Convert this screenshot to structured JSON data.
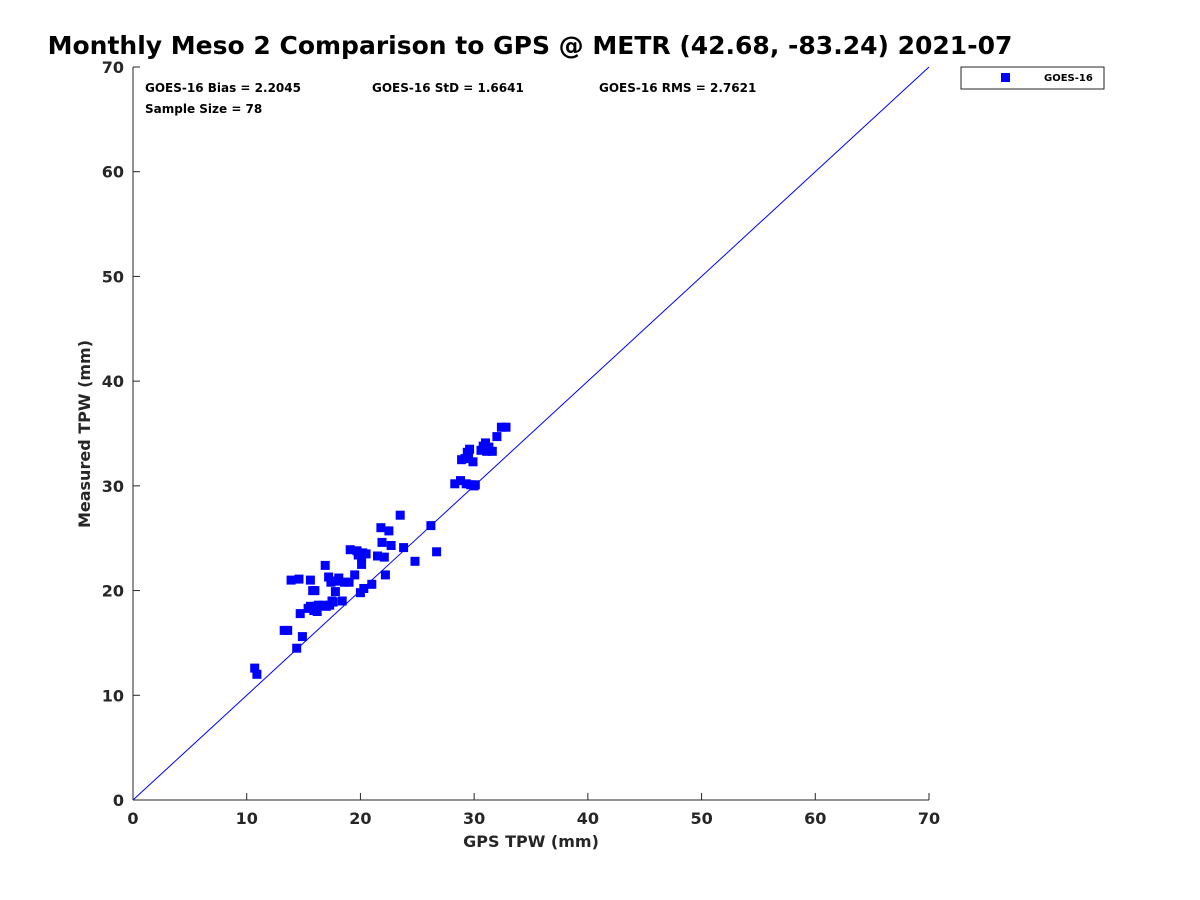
{
  "chart_data": {
    "type": "scatter",
    "title": "Monthly Meso 2 Comparison to GPS @ METR (42.68, -83.24) 2021-07",
    "xlabel": "GPS TPW (mm)",
    "ylabel": "Measured TPW (mm)",
    "xlim": [
      0,
      70
    ],
    "ylim": [
      0,
      70
    ],
    "xticks": [
      "0",
      "10",
      "20",
      "30",
      "40",
      "50",
      "60",
      "70"
    ],
    "yticks": [
      "0",
      "10",
      "20",
      "30",
      "40",
      "50",
      "60",
      "70"
    ],
    "grid": false,
    "legend_position": "outside-top-right",
    "reference_line": {
      "from": [
        0,
        0
      ],
      "to": [
        70,
        70
      ],
      "color": "#0000ff"
    },
    "stats": {
      "bias": "GOES-16 Bias = 2.2045",
      "std": "GOES-16 StD = 1.6641",
      "rms": "GOES-16 RMS = 2.7621",
      "sample_size": "Sample Size = 78"
    },
    "series": [
      {
        "name": "GOES-16",
        "color": "#0000ff",
        "marker": "square",
        "x": [
          10.7,
          10.9,
          13.3,
          13.6,
          13.9,
          14.4,
          14.6,
          14.7,
          14.9,
          15.4,
          15.6,
          15.6,
          15.8,
          15.9,
          16.0,
          16.1,
          16.2,
          16.3,
          16.7,
          16.9,
          17.0,
          17.2,
          17.3,
          17.4,
          17.5,
          17.6,
          17.7,
          17.8,
          17.9,
          18.1,
          18.4,
          18.6,
          19.0,
          19.1,
          19.5,
          19.7,
          19.8,
          20.0,
          20.1,
          20.1,
          20.2,
          20.3,
          20.5,
          21.0,
          21.5,
          21.8,
          21.9,
          22.1,
          22.2,
          22.5,
          22.7,
          23.5,
          23.8,
          24.8,
          26.2,
          26.7,
          28.3,
          28.8,
          28.9,
          29.2,
          29.3,
          29.4,
          29.5,
          29.6,
          29.7,
          29.9,
          30.0,
          30.1,
          30.6,
          30.8,
          30.9,
          31.0,
          31.1,
          31.3,
          31.6,
          32.0,
          32.4,
          32.8
        ],
        "y": [
          12.6,
          12.0,
          16.2,
          16.2,
          21.0,
          14.5,
          21.1,
          17.8,
          15.6,
          18.3,
          21.0,
          18.5,
          20.0,
          18.1,
          20.0,
          18.5,
          18.0,
          18.6,
          18.6,
          22.4,
          18.5,
          21.3,
          18.6,
          20.8,
          19.0,
          18.9,
          20.9,
          19.9,
          20.9,
          21.2,
          19.0,
          20.8,
          20.8,
          23.9,
          21.5,
          23.8,
          23.4,
          19.8,
          22.5,
          23.2,
          23.6,
          20.2,
          23.5,
          20.6,
          23.3,
          26.0,
          24.6,
          23.2,
          21.5,
          25.7,
          24.3,
          27.2,
          24.1,
          22.8,
          26.2,
          23.7,
          30.2,
          30.5,
          32.5,
          32.6,
          30.2,
          33.2,
          32.9,
          33.5,
          30.1,
          32.3,
          30.0,
          30.1,
          33.4,
          33.8,
          33.6,
          34.1,
          33.3,
          33.7,
          33.3,
          34.7,
          35.6,
          35.6
        ]
      }
    ]
  }
}
